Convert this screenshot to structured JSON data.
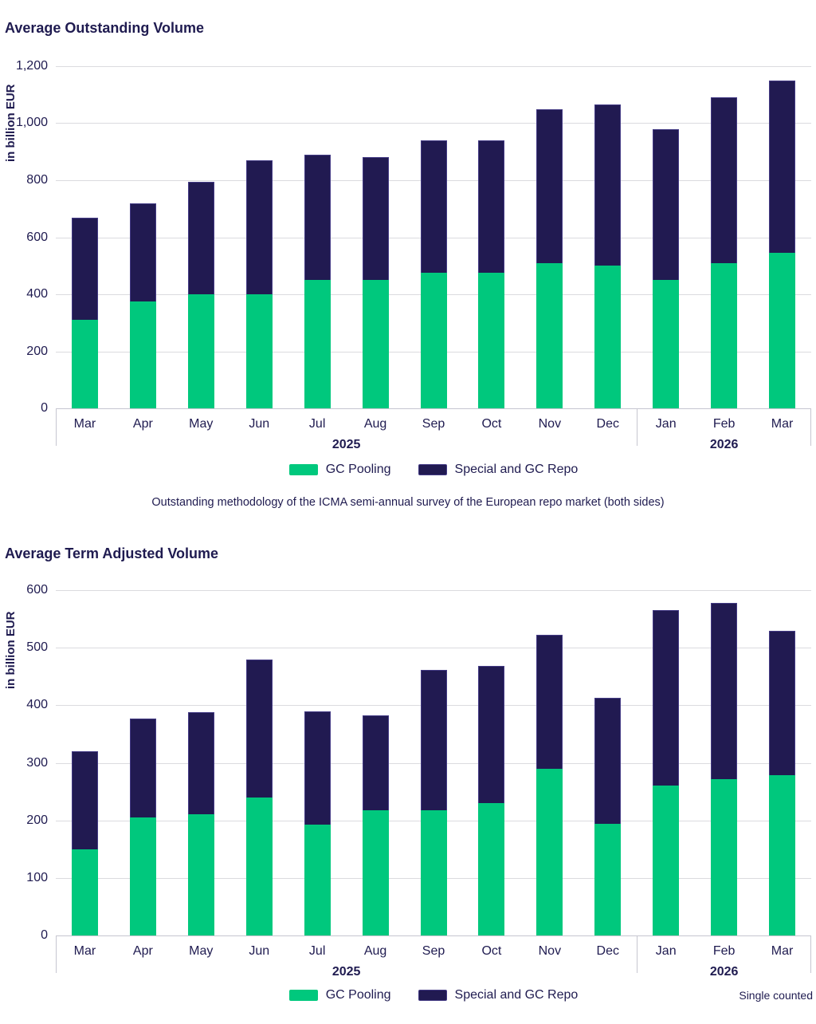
{
  "colors": {
    "gc_pooling_green": "#00C87D",
    "special_repo_navy": "#211A51",
    "navy_bar_edge": "rgba(92,82,168,0.6)",
    "text_navy": "#1F1B50",
    "gridline_gray": "#DBDBDF"
  },
  "chart_data": [
    {
      "type": "bar",
      "stacked": true,
      "title": "Average Outstanding Volume",
      "ylabel": "in billion EUR",
      "ylim": [
        0,
        1200
      ],
      "grid": true,
      "legend_position": "bottom-center",
      "yticks": [
        {
          "value": 0,
          "label": "0"
        },
        {
          "value": 200,
          "label": "200"
        },
        {
          "value": 400,
          "label": "400"
        },
        {
          "value": 600,
          "label": "600"
        },
        {
          "value": 800,
          "label": "800"
        },
        {
          "value": 1000,
          "label": "1,000"
        },
        {
          "value": 1200,
          "label": "1,200"
        }
      ],
      "categories": [
        "Mar",
        "Apr",
        "May",
        "Jun",
        "Jul",
        "Aug",
        "Sep",
        "Oct",
        "Nov",
        "Dec",
        "Jan",
        "Feb",
        "Mar"
      ],
      "year_groups": [
        {
          "label": "2025",
          "span": 10
        },
        {
          "label": "2026",
          "span": 3
        }
      ],
      "series": [
        {
          "name": "GC Pooling",
          "color": "#00C87D",
          "values": [
            310,
            375,
            400,
            400,
            450,
            450,
            475,
            475,
            510,
            500,
            450,
            510,
            545
          ]
        },
        {
          "name": "Special and GC Repo",
          "color": "#211A51",
          "border": "rgba(92,82,168,0.6)",
          "values": [
            360,
            345,
            395,
            470,
            440,
            430,
            465,
            465,
            540,
            565,
            530,
            580,
            605
          ]
        }
      ],
      "totals": [
        670,
        720,
        795,
        870,
        890,
        880,
        940,
        940,
        1050,
        1065,
        980,
        1090,
        1150
      ],
      "caption": "Outstanding methodology of the ICMA semi-annual survey of the European repo market (both sides)"
    },
    {
      "type": "bar",
      "stacked": true,
      "title": "Average Term Adjusted Volume",
      "ylabel": "in billion EUR",
      "ylim": [
        0,
        600
      ],
      "grid": true,
      "legend_position": "bottom-center",
      "yticks": [
        {
          "value": 0,
          "label": "0"
        },
        {
          "value": 100,
          "label": "100"
        },
        {
          "value": 200,
          "label": "200"
        },
        {
          "value": 300,
          "label": "300"
        },
        {
          "value": 400,
          "label": "400"
        },
        {
          "value": 500,
          "label": "500"
        },
        {
          "value": 600,
          "label": "600"
        }
      ],
      "categories": [
        "Mar",
        "Apr",
        "May",
        "Jun",
        "Jul",
        "Aug",
        "Sep",
        "Oct",
        "Nov",
        "Dec",
        "Jan",
        "Feb",
        "Mar"
      ],
      "year_groups": [
        {
          "label": "2025",
          "span": 10
        },
        {
          "label": "2026",
          "span": 3
        }
      ],
      "series": [
        {
          "name": "GC Pooling",
          "color": "#00C87D",
          "values": [
            150,
            205,
            210,
            240,
            193,
            218,
            218,
            230,
            290,
            194,
            260,
            272,
            278
          ]
        },
        {
          "name": "Special and GC Repo",
          "color": "#211A51",
          "border": "rgba(92,82,168,0.6)",
          "values": [
            170,
            172,
            178,
            240,
            196,
            165,
            244,
            238,
            232,
            219,
            305,
            306,
            251
          ]
        }
      ],
      "totals": [
        320,
        377,
        388,
        480,
        389,
        383,
        462,
        468,
        522,
        413,
        565,
        578,
        529
      ],
      "footnote": "Single counted"
    }
  ]
}
